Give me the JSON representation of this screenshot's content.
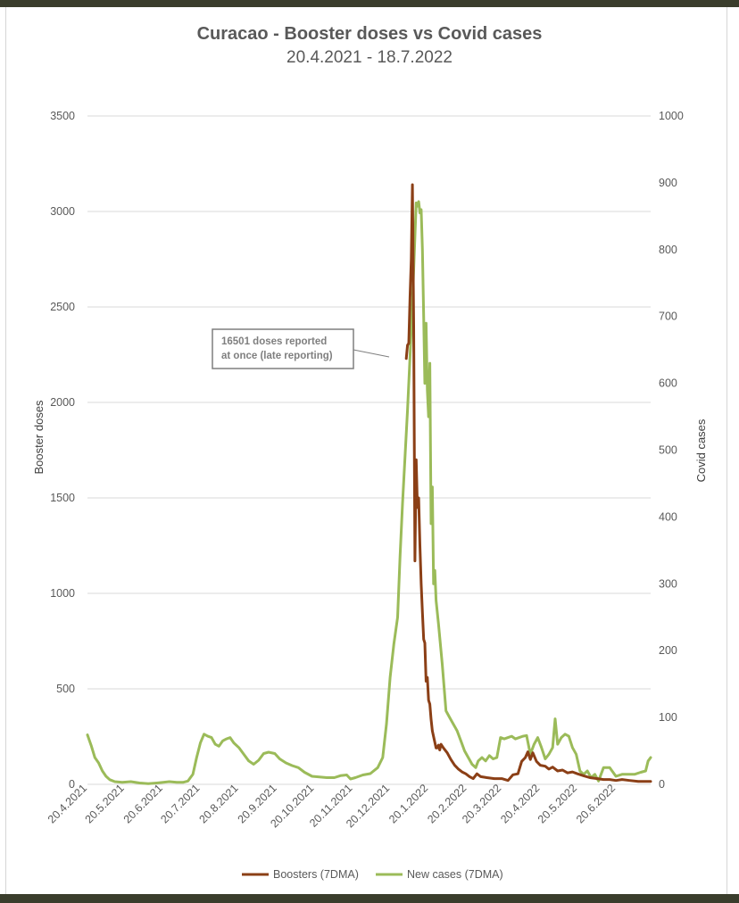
{
  "colors": {
    "boosters": "#8b3f16",
    "cases": "#9bbb59",
    "grid": "#d9d9d9",
    "text": "#595959"
  },
  "chart_data": {
    "type": "line",
    "title": "Curacao - Booster doses vs Covid cases",
    "subtitle": "20.4.2021 - 18.7.2022",
    "x_range": [
      "2021-04-20",
      "2022-07-18"
    ],
    "x_ticks": [
      "20.4.2021",
      "20.5.2021",
      "20.6.2021",
      "20.7.2021",
      "20.8.2021",
      "20.9.2021",
      "20.10.2021",
      "20.11.2021",
      "20.12.2021",
      "20.1.2022",
      "20.2.2022",
      "20.3.2022",
      "20.4.2022",
      "20.5.2022",
      "20.6.2022"
    ],
    "y_left": {
      "label": "Booster doses",
      "min": 0,
      "max": 3500,
      "ticks": [
        0,
        500,
        1000,
        1500,
        2000,
        2500,
        3000,
        3500
      ]
    },
    "y_right": {
      "label": "Covid cases",
      "min": 0,
      "max": 1000,
      "ticks": [
        0,
        100,
        200,
        300,
        400,
        500,
        600,
        700,
        800,
        900,
        1000
      ]
    },
    "grid": true,
    "legend_position": "bottom",
    "annotation": {
      "lines": [
        "16501 doses reported",
        "at once (late reporting)"
      ]
    },
    "series": [
      {
        "name": "Boosters (7DMA)",
        "axis": "left",
        "points": [
          [
            "2022-01-02",
            2230
          ],
          [
            "2022-01-03",
            2300
          ],
          [
            "2022-01-04",
            2310
          ],
          [
            "2022-01-05",
            2550
          ],
          [
            "2022-01-06",
            2750
          ],
          [
            "2022-01-07",
            3140
          ],
          [
            "2022-01-08",
            2400
          ],
          [
            "2022-01-09",
            1170
          ],
          [
            "2022-01-10",
            1700
          ],
          [
            "2022-01-11",
            1450
          ],
          [
            "2022-01-12",
            1500
          ],
          [
            "2022-01-13",
            1250
          ],
          [
            "2022-01-14",
            1050
          ],
          [
            "2022-01-15",
            900
          ],
          [
            "2022-01-16",
            760
          ],
          [
            "2022-01-17",
            740
          ],
          [
            "2022-01-18",
            540
          ],
          [
            "2022-01-19",
            560
          ],
          [
            "2022-01-20",
            440
          ],
          [
            "2022-01-21",
            420
          ],
          [
            "2022-01-22",
            340
          ],
          [
            "2022-01-23",
            280
          ],
          [
            "2022-01-24",
            250
          ],
          [
            "2022-01-25",
            220
          ],
          [
            "2022-01-26",
            190
          ],
          [
            "2022-01-27",
            190
          ],
          [
            "2022-01-28",
            205
          ],
          [
            "2022-01-29",
            180
          ],
          [
            "2022-01-30",
            210
          ],
          [
            "2022-02-01",
            190
          ],
          [
            "2022-02-04",
            165
          ],
          [
            "2022-02-07",
            130
          ],
          [
            "2022-02-10",
            100
          ],
          [
            "2022-02-13",
            80
          ],
          [
            "2022-02-16",
            65
          ],
          [
            "2022-02-19",
            55
          ],
          [
            "2022-02-22",
            40
          ],
          [
            "2022-02-25",
            30
          ],
          [
            "2022-02-28",
            55
          ],
          [
            "2022-03-03",
            40
          ],
          [
            "2022-03-08",
            35
          ],
          [
            "2022-03-14",
            30
          ],
          [
            "2022-03-20",
            30
          ],
          [
            "2022-03-25",
            20
          ],
          [
            "2022-03-29",
            50
          ],
          [
            "2022-04-02",
            55
          ],
          [
            "2022-04-05",
            120
          ],
          [
            "2022-04-08",
            140
          ],
          [
            "2022-04-10",
            170
          ],
          [
            "2022-04-12",
            130
          ],
          [
            "2022-04-14",
            165
          ],
          [
            "2022-04-17",
            120
          ],
          [
            "2022-04-20",
            100
          ],
          [
            "2022-04-24",
            95
          ],
          [
            "2022-04-27",
            80
          ],
          [
            "2022-04-30",
            90
          ],
          [
            "2022-05-04",
            70
          ],
          [
            "2022-05-08",
            75
          ],
          [
            "2022-05-12",
            60
          ],
          [
            "2022-05-16",
            65
          ],
          [
            "2022-05-20",
            55
          ],
          [
            "2022-05-25",
            45
          ],
          [
            "2022-05-30",
            35
          ],
          [
            "2022-06-05",
            30
          ],
          [
            "2022-06-10",
            25
          ],
          [
            "2022-06-15",
            25
          ],
          [
            "2022-06-20",
            20
          ],
          [
            "2022-06-25",
            25
          ],
          [
            "2022-07-01",
            20
          ],
          [
            "2022-07-08",
            15
          ],
          [
            "2022-07-18",
            15
          ]
        ]
      },
      {
        "name": "New cases (7DMA)",
        "axis": "right",
        "points": [
          [
            "2021-04-20",
            74
          ],
          [
            "2021-04-23",
            58
          ],
          [
            "2021-04-26",
            40
          ],
          [
            "2021-04-29",
            32
          ],
          [
            "2021-05-02",
            20
          ],
          [
            "2021-05-05",
            12
          ],
          [
            "2021-05-08",
            7
          ],
          [
            "2021-05-12",
            4
          ],
          [
            "2021-05-18",
            3
          ],
          [
            "2021-05-25",
            4
          ],
          [
            "2021-06-01",
            2
          ],
          [
            "2021-06-08",
            1
          ],
          [
            "2021-06-15",
            2
          ],
          [
            "2021-06-20",
            3
          ],
          [
            "2021-06-25",
            4
          ],
          [
            "2021-07-01",
            3
          ],
          [
            "2021-07-06",
            3
          ],
          [
            "2021-07-10",
            5
          ],
          [
            "2021-07-14",
            15
          ],
          [
            "2021-07-17",
            40
          ],
          [
            "2021-07-20",
            62
          ],
          [
            "2021-07-23",
            75
          ],
          [
            "2021-07-26",
            72
          ],
          [
            "2021-07-29",
            70
          ],
          [
            "2021-08-01",
            60
          ],
          [
            "2021-08-04",
            57
          ],
          [
            "2021-08-07",
            65
          ],
          [
            "2021-08-10",
            68
          ],
          [
            "2021-08-13",
            70
          ],
          [
            "2021-08-16",
            62
          ],
          [
            "2021-08-20",
            55
          ],
          [
            "2021-08-24",
            45
          ],
          [
            "2021-08-28",
            35
          ],
          [
            "2021-09-01",
            30
          ],
          [
            "2021-09-05",
            36
          ],
          [
            "2021-09-09",
            46
          ],
          [
            "2021-09-13",
            48
          ],
          [
            "2021-09-18",
            46
          ],
          [
            "2021-09-22",
            38
          ],
          [
            "2021-09-27",
            32
          ],
          [
            "2021-10-02",
            28
          ],
          [
            "2021-10-07",
            25
          ],
          [
            "2021-10-12",
            18
          ],
          [
            "2021-10-18",
            12
          ],
          [
            "2021-10-24",
            11
          ],
          [
            "2021-10-30",
            10
          ],
          [
            "2021-11-05",
            10
          ],
          [
            "2021-11-10",
            13
          ],
          [
            "2021-11-15",
            14
          ],
          [
            "2021-11-18",
            8
          ],
          [
            "2021-11-22",
            10
          ],
          [
            "2021-11-28",
            14
          ],
          [
            "2021-12-04",
            16
          ],
          [
            "2021-12-10",
            25
          ],
          [
            "2021-12-14",
            40
          ],
          [
            "2021-12-17",
            90
          ],
          [
            "2021-12-20",
            160
          ],
          [
            "2021-12-23",
            210
          ],
          [
            "2021-12-26",
            250
          ],
          [
            "2021-12-28",
            340
          ],
          [
            "2021-12-30",
            420
          ],
          [
            "2022-01-01",
            490
          ],
          [
            "2022-01-03",
            560
          ],
          [
            "2022-01-05",
            640
          ],
          [
            "2022-01-07",
            720
          ],
          [
            "2022-01-09",
            820
          ],
          [
            "2022-01-10",
            870
          ],
          [
            "2022-01-11",
            865
          ],
          [
            "2022-01-12",
            872
          ],
          [
            "2022-01-13",
            855
          ],
          [
            "2022-01-14",
            860
          ],
          [
            "2022-01-15",
            800
          ],
          [
            "2022-01-16",
            700
          ],
          [
            "2022-01-17",
            600
          ],
          [
            "2022-01-18",
            690
          ],
          [
            "2022-01-19",
            590
          ],
          [
            "2022-01-20",
            550
          ],
          [
            "2022-01-21",
            630
          ],
          [
            "2022-01-22",
            390
          ],
          [
            "2022-01-23",
            445
          ],
          [
            "2022-01-24",
            300
          ],
          [
            "2022-01-25",
            320
          ],
          [
            "2022-01-26",
            275
          ],
          [
            "2022-01-28",
            240
          ],
          [
            "2022-01-31",
            180
          ],
          [
            "2022-02-03",
            110
          ],
          [
            "2022-02-06",
            100
          ],
          [
            "2022-02-09",
            90
          ],
          [
            "2022-02-12",
            80
          ],
          [
            "2022-02-15",
            65
          ],
          [
            "2022-02-18",
            50
          ],
          [
            "2022-02-21",
            40
          ],
          [
            "2022-02-24",
            30
          ],
          [
            "2022-02-27",
            25
          ],
          [
            "2022-03-01",
            35
          ],
          [
            "2022-03-04",
            40
          ],
          [
            "2022-03-07",
            35
          ],
          [
            "2022-03-10",
            43
          ],
          [
            "2022-03-13",
            38
          ],
          [
            "2022-03-16",
            40
          ],
          [
            "2022-03-19",
            70
          ],
          [
            "2022-03-22",
            68
          ],
          [
            "2022-03-25",
            70
          ],
          [
            "2022-03-28",
            72
          ],
          [
            "2022-03-31",
            68
          ],
          [
            "2022-04-03",
            70
          ],
          [
            "2022-04-06",
            72
          ],
          [
            "2022-04-09",
            73
          ],
          [
            "2022-04-12",
            45
          ],
          [
            "2022-04-15",
            60
          ],
          [
            "2022-04-18",
            70
          ],
          [
            "2022-04-21",
            55
          ],
          [
            "2022-04-24",
            38
          ],
          [
            "2022-04-27",
            45
          ],
          [
            "2022-04-30",
            55
          ],
          [
            "2022-05-02",
            98
          ],
          [
            "2022-05-04",
            60
          ],
          [
            "2022-05-07",
            70
          ],
          [
            "2022-05-10",
            75
          ],
          [
            "2022-05-13",
            72
          ],
          [
            "2022-05-16",
            55
          ],
          [
            "2022-05-19",
            45
          ],
          [
            "2022-05-22",
            20
          ],
          [
            "2022-05-25",
            15
          ],
          [
            "2022-05-28",
            20
          ],
          [
            "2022-05-31",
            10
          ],
          [
            "2022-06-03",
            15
          ],
          [
            "2022-06-06",
            5
          ],
          [
            "2022-06-10",
            25
          ],
          [
            "2022-06-15",
            25
          ],
          [
            "2022-06-20",
            12
          ],
          [
            "2022-06-25",
            15
          ],
          [
            "2022-06-30",
            15
          ],
          [
            "2022-07-05",
            15
          ],
          [
            "2022-07-10",
            18
          ],
          [
            "2022-07-14",
            20
          ],
          [
            "2022-07-16",
            35
          ],
          [
            "2022-07-18",
            40
          ]
        ]
      }
    ]
  }
}
